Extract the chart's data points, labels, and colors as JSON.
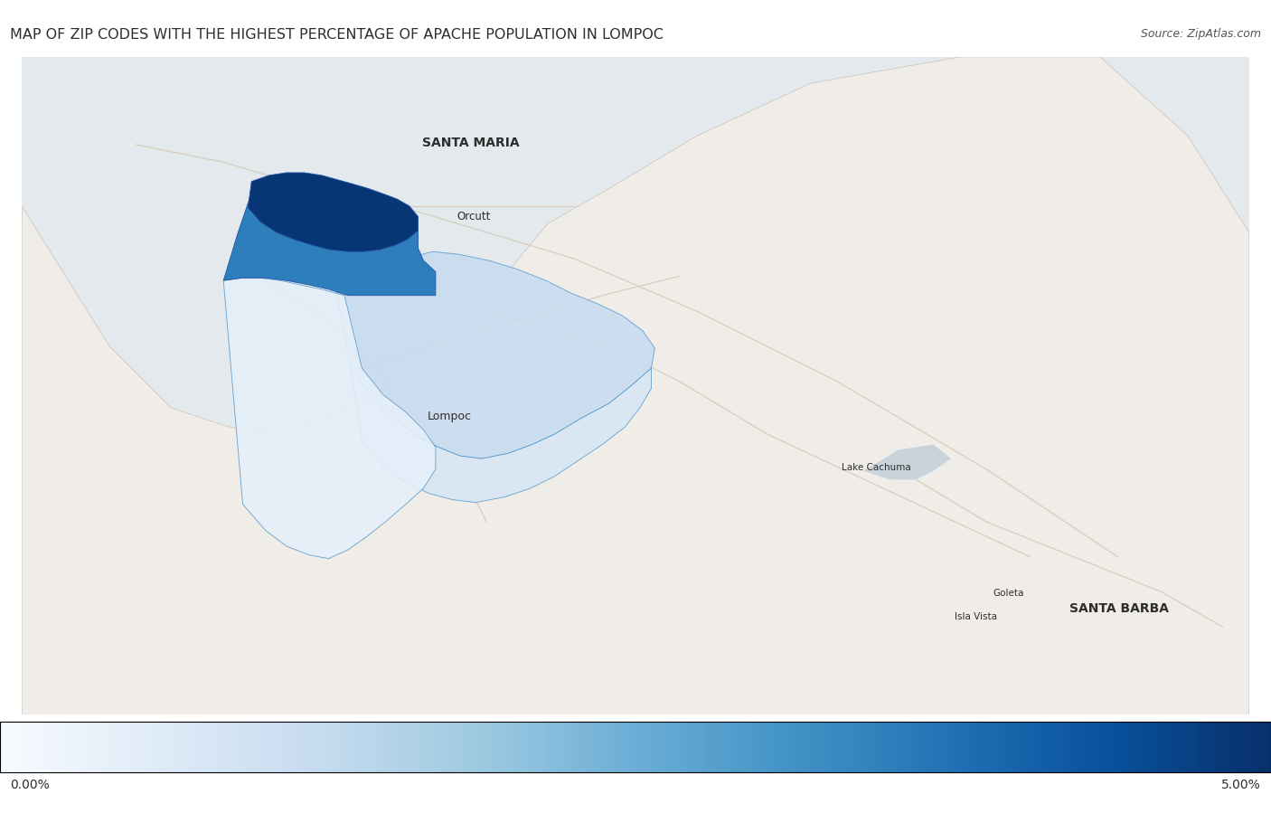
{
  "title": "MAP OF ZIP CODES WITH THE HIGHEST PERCENTAGE OF APACHE POPULATION IN LOMPOC",
  "source": "Source: ZipAtlas.com",
  "colorbar_min": "0.00%",
  "colorbar_max": "5.00%",
  "cmap_name": "Blues",
  "bg_color": "#e4e9ed",
  "land_color": "#f0ede8",
  "land_edge_color": "#ccc8c2",
  "road_color": "#d8cfc0",
  "water_color": "#c8d4da",
  "city_labels": [
    {
      "name": "SANTA MARIA",
      "lon": -120.438,
      "lat": 34.952,
      "bold": true,
      "fontsize": 10
    },
    {
      "name": "Orcutt",
      "lon": -120.435,
      "lat": 34.868,
      "bold": false,
      "fontsize": 8.5
    },
    {
      "name": "Lompoc",
      "lon": -120.462,
      "lat": 34.64,
      "bold": false,
      "fontsize": 9
    },
    {
      "name": "Lake Cachuma",
      "lon": -119.975,
      "lat": 34.582,
      "bold": false,
      "fontsize": 7.5
    },
    {
      "name": "Goleta",
      "lon": -119.825,
      "lat": 34.438,
      "bold": false,
      "fontsize": 7.5
    },
    {
      "name": "Isla Vista",
      "lon": -119.862,
      "lat": 34.412,
      "bold": false,
      "fontsize": 7.5
    },
    {
      "name": "SANTA BARBA",
      "lon": -119.698,
      "lat": 34.421,
      "bold": true,
      "fontsize": 10
    }
  ],
  "map_extent": [
    -120.95,
    -119.55,
    34.3,
    35.05
  ],
  "figsize": [
    14.06,
    8.99
  ],
  "dpi": 100,
  "title_fontsize": 11.5,
  "source_fontsize": 9,
  "vmin": 0.0,
  "vmax": 5.0
}
